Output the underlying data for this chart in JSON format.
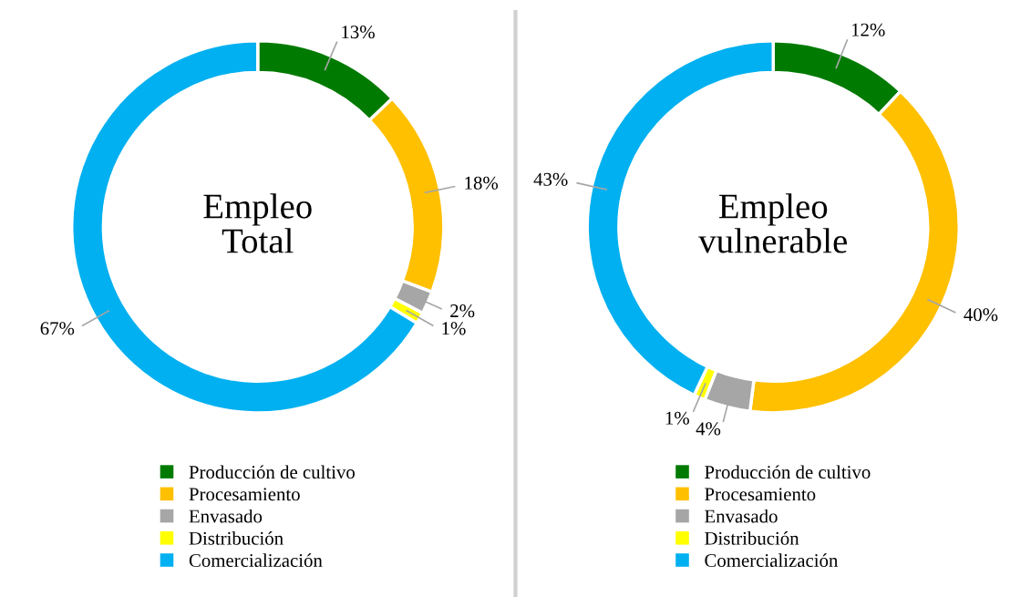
{
  "chart_data": [
    {
      "type": "donut",
      "title": "Empleo\nTotal",
      "categories": [
        "Producción de cultivo",
        "Procesamiento",
        "Envasado",
        "Distribución",
        "Comercialización"
      ],
      "values": [
        13,
        18,
        2,
        1,
        67
      ],
      "value_labels": [
        "13%",
        "18%",
        "2%",
        "1%",
        "67%"
      ],
      "colors": [
        "#007a00",
        "#ffc000",
        "#a6a6a6",
        "#ffff00",
        "#00b0f0"
      ],
      "legend": "bottom"
    },
    {
      "type": "donut",
      "title": "Empleo\nvulnerable",
      "categories": [
        "Producción de cultivo",
        "Procesamiento",
        "Envasado",
        "Distribución",
        "Comercialización"
      ],
      "values": [
        12,
        40,
        4,
        1,
        43
      ],
      "value_labels": [
        "12%",
        "40%",
        "4%",
        "1%",
        "43%"
      ],
      "colors": [
        "#007a00",
        "#ffc000",
        "#a6a6a6",
        "#ffff00",
        "#00b0f0"
      ],
      "legend": "bottom"
    }
  ]
}
